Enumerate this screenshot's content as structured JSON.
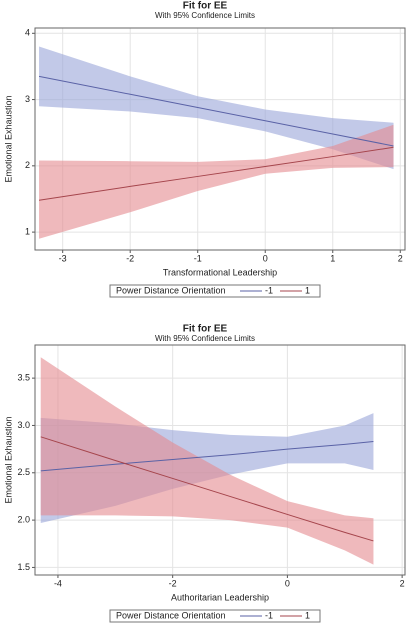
{
  "chart_data": [
    {
      "type": "line",
      "title": "Fit for EE",
      "subtitle": "With 95% Confidence Limits",
      "x_label": "Transformational Leadership",
      "y_label": "Emotional Exhaustion",
      "legend_title": "Power Distance Orientation",
      "grid": true,
      "legend": "bottom",
      "x": [
        -3.35,
        -2,
        -1,
        0,
        1,
        1.9
      ],
      "xlim": [
        -3.41,
        2.07
      ],
      "xticks": [
        -3,
        -2,
        -1,
        0,
        1,
        2
      ],
      "ylim": [
        0.73,
        4.08
      ],
      "yticks": [
        1,
        2,
        3,
        4
      ],
      "series": [
        {
          "name": "-1",
          "color": "#5a62a6",
          "band_color": "#9aa5d8",
          "values": [
            3.35,
            3.08,
            2.88,
            2.68,
            2.48,
            2.3
          ],
          "upper": [
            3.8,
            3.35,
            3.05,
            2.85,
            2.72,
            2.65
          ],
          "lower": [
            2.9,
            2.82,
            2.72,
            2.52,
            2.25,
            1.95
          ]
        },
        {
          "name": "1",
          "color": "#a5454c",
          "band_color": "#e58a90",
          "values": [
            1.48,
            1.69,
            1.84,
            1.99,
            2.14,
            2.28
          ],
          "upper": [
            2.08,
            2.07,
            2.06,
            2.1,
            2.3,
            2.62
          ],
          "lower": [
            0.9,
            1.3,
            1.62,
            1.88,
            1.97,
            1.98
          ]
        }
      ]
    },
    {
      "type": "line",
      "title": "Fit for EE",
      "subtitle": "With 95% Confidence Limits",
      "x_label": "Authoritarian Leadership",
      "y_label": "Emotional Exhaustion",
      "legend_title": "Power Distance Orientation",
      "grid": true,
      "legend": "bottom",
      "x": [
        -4.3,
        -3,
        -2,
        -1,
        0,
        1,
        1.5
      ],
      "xlim": [
        -4.4,
        2.05
      ],
      "xticks": [
        -4,
        -2,
        0,
        2
      ],
      "ylim": [
        1.42,
        3.85
      ],
      "yticks": [
        1.5,
        {
          "value": 2,
          "label": "2.0"
        },
        2.5,
        {
          "value": 3,
          "label": "3.0"
        },
        3.5
      ],
      "series": [
        {
          "name": "-1",
          "color": "#5a62a6",
          "band_color": "#9aa5d8",
          "values": [
            2.52,
            2.59,
            2.64,
            2.69,
            2.75,
            2.8,
            2.83
          ],
          "upper": [
            3.08,
            3.02,
            2.95,
            2.9,
            2.88,
            3.0,
            3.13
          ],
          "lower": [
            1.97,
            2.15,
            2.33,
            2.48,
            2.6,
            2.6,
            2.53
          ]
        },
        {
          "name": "1",
          "color": "#a5454c",
          "band_color": "#e58a90",
          "values": [
            2.88,
            2.63,
            2.44,
            2.25,
            2.06,
            1.87,
            1.78
          ],
          "upper": [
            3.72,
            3.2,
            2.82,
            2.48,
            2.2,
            2.05,
            2.02
          ],
          "lower": [
            2.05,
            2.05,
            2.04,
            2.0,
            1.92,
            1.68,
            1.53
          ]
        }
      ]
    }
  ]
}
